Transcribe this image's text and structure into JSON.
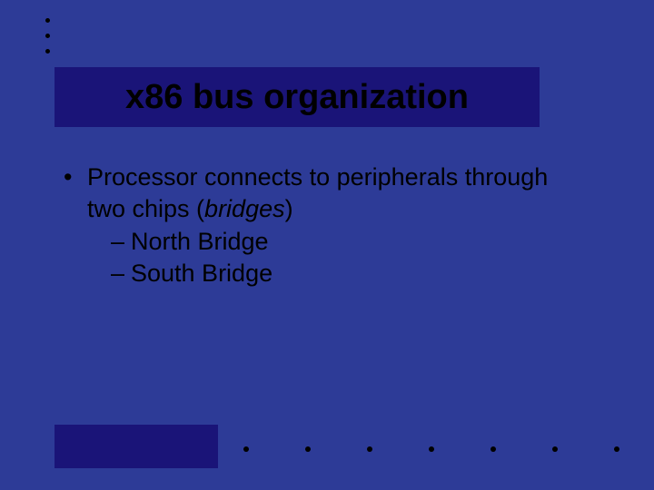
{
  "colors": {
    "background": "#2d3b97",
    "title_bar": "#1a1478",
    "title_text": "#000000",
    "body_text": "#000000",
    "dot": "#000000",
    "bottom_bar": "#1a1478"
  },
  "title": "x86 bus organization",
  "bullet": {
    "text_before_italic": "Processor connects to peripherals through two chips (",
    "italic": "bridges",
    "text_after_italic": ")"
  },
  "sub_items": [
    "North Bridge",
    "South Bridge"
  ],
  "decor": {
    "top_dot_count": 3,
    "bottom_dot_count": 7
  }
}
